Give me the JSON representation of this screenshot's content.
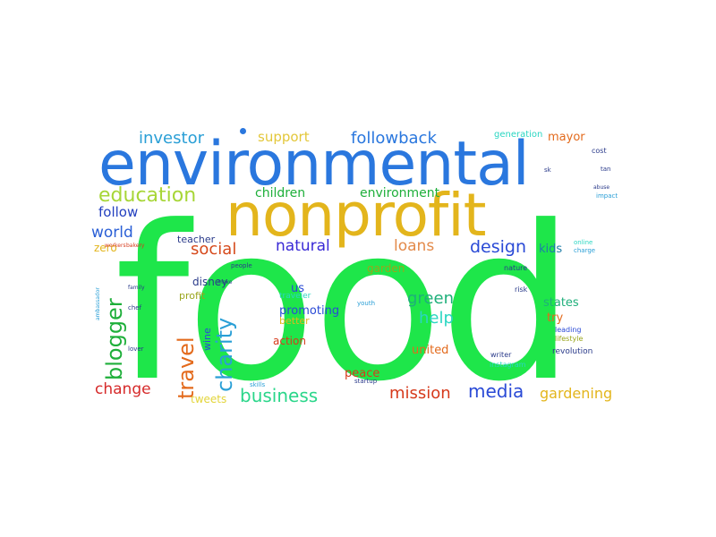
{
  "words": {
    "food": "food",
    "environmental": "environmental",
    "nonprofit": "nonprofit",
    "education": "education",
    "investor": "investor",
    "support": "support",
    "followback": "followback",
    "generation": "generation",
    "mayor": "mayor",
    "children": "children",
    "environment": "environment",
    "follow": "follow",
    "world": "world",
    "social": "social",
    "natural": "natural",
    "loans": "loans",
    "design": "design",
    "kids": "kids",
    "zero": "zero",
    "teacher": "teacher",
    "garden": "garden",
    "green": "green",
    "blogger": "blogger",
    "travel": "travel",
    "charity": "charity",
    "help": "help",
    "disney": "disney",
    "profit": "profit",
    "us": "us",
    "promoting": "promoting",
    "better": "better",
    "states": "states",
    "try": "try",
    "wine": "wine",
    "action": "action",
    "united": "united",
    "peace": "peace",
    "change": "change",
    "business": "business",
    "mission": "mission",
    "media": "media",
    "gardening": "gardening",
    "tweets": "tweets",
    "traveler": "traveler",
    "revolution": "revolution",
    "lifestyle": "lifestyle",
    "leading": "leading",
    "writer": "writer",
    "instagram": "instagram",
    "risk": "risk",
    "nature": "nature",
    "startup": "startup",
    "skills": "skills",
    "youth": "youth",
    "chef": "chef",
    "lover": "lover",
    "make": "make",
    "people": "people",
    "family": "family",
    "cost": "cost",
    "tan": "tan",
    "sk": "sk",
    "online": "online",
    "charge": "charge",
    "impact": "impact",
    "abuse": "abuse",
    "ambassador": "ambassador",
    "workers": "workers",
    "bakery": "bakery"
  },
  "colors": {
    "background": "#ffffff",
    "green": "#1ee64a",
    "blue": "#2a77de",
    "gold": "#e3b51c"
  }
}
